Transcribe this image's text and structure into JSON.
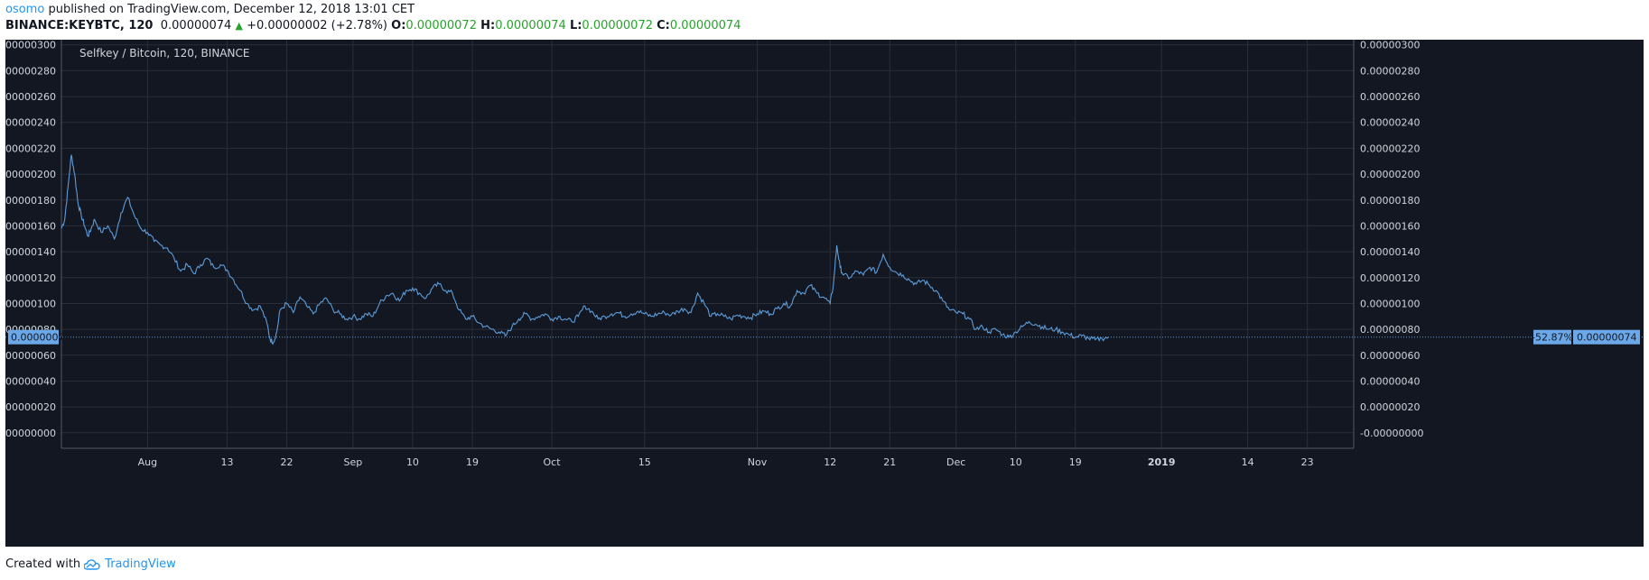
{
  "header": {
    "author": "osomo",
    "published": "published on TradingView.com, December 12, 2018 13:01 CET",
    "symbol": "BINANCE:KEYBTC, 120",
    "last": "0.00000074",
    "change": "+0.00000002 (+2.78%)",
    "o_label": "O:",
    "o_value": "0.00000072",
    "h_label": "H:",
    "h_value": "0.00000074",
    "l_label": "L:",
    "l_value": "0.00000072",
    "c_label": "C:",
    "c_value": "0.00000074"
  },
  "colors": {
    "background": "#131722",
    "grid": "#2a2e39",
    "line": "#5d9cd9",
    "label_bg": "#6ca8e8",
    "up": "#26a32a",
    "accent": "#2196f3"
  },
  "footer": {
    "created_with": "Created with",
    "brand": "TradingView",
    "logo_icon": "tradingview-cloud-icon"
  },
  "chart_data": {
    "type": "line",
    "title": "Selfkey / Bitcoin, 120, BINANCE",
    "ylim": [
      -1.2e-07,
      3.04e-06
    ],
    "y_ticks": [
      "0.00000300",
      "0.00000280",
      "0.00000260",
      "0.00000240",
      "0.00000220",
      "0.00000200",
      "0.00000180",
      "0.00000160",
      "0.00000140",
      "0.00000120",
      "0.00000100",
      "0.00000080",
      "0.00000060",
      "0.00000040",
      "0.00000020",
      "-0.00000000"
    ],
    "y_tick_values": [
      300,
      280,
      260,
      240,
      220,
      200,
      180,
      160,
      140,
      120,
      100,
      80,
      60,
      40,
      20,
      0
    ],
    "x_range": [
      "2018-07-19",
      "2019-01-30"
    ],
    "x_ticks": [
      {
        "label": "Aug",
        "date": "2018-08-01",
        "bold": false
      },
      {
        "label": "13",
        "date": "2018-08-13",
        "bold": false
      },
      {
        "label": "22",
        "date": "2018-08-22",
        "bold": false
      },
      {
        "label": "Sep",
        "date": "2018-09-01",
        "bold": false
      },
      {
        "label": "10",
        "date": "2018-09-10",
        "bold": false
      },
      {
        "label": "19",
        "date": "2018-09-19",
        "bold": false
      },
      {
        "label": "Oct",
        "date": "2018-10-01",
        "bold": false
      },
      {
        "label": "15",
        "date": "2018-10-15",
        "bold": false
      },
      {
        "label": "Nov",
        "date": "2018-11-01",
        "bold": false
      },
      {
        "label": "12",
        "date": "2018-11-12",
        "bold": false
      },
      {
        "label": "21",
        "date": "2018-11-21",
        "bold": false
      },
      {
        "label": "Dec",
        "date": "2018-12-01",
        "bold": false
      },
      {
        "label": "10",
        "date": "2018-12-10",
        "bold": false
      },
      {
        "label": "19",
        "date": "2018-12-19",
        "bold": false
      },
      {
        "label": "2019",
        "date": "2019-01-01",
        "bold": true
      },
      {
        "label": "14",
        "date": "2019-01-14",
        "bold": false
      },
      {
        "label": "23",
        "date": "2019-01-23",
        "bold": false
      }
    ],
    "y_unit_note": "",
    "series": [
      {
        "values_scale": "1e-8",
        "points": [
          [
            "2018-07-19",
            158
          ],
          [
            "2018-07-19T12",
            165
          ],
          [
            "2018-07-20",
            190
          ],
          [
            "2018-07-20T12",
            215
          ],
          [
            "2018-07-21",
            200
          ],
          [
            "2018-07-21T12",
            178
          ],
          [
            "2018-07-22",
            168
          ],
          [
            "2018-07-22T12",
            160
          ],
          [
            "2018-07-23",
            152
          ],
          [
            "2018-07-23T12",
            158
          ],
          [
            "2018-07-24",
            165
          ],
          [
            "2018-07-25",
            155
          ],
          [
            "2018-07-26",
            160
          ],
          [
            "2018-07-27",
            150
          ],
          [
            "2018-07-28",
            170
          ],
          [
            "2018-07-29",
            182
          ],
          [
            "2018-07-30",
            168
          ],
          [
            "2018-07-31",
            158
          ],
          [
            "2018-08-01",
            155
          ],
          [
            "2018-08-02",
            148
          ],
          [
            "2018-08-03",
            145
          ],
          [
            "2018-08-04",
            143
          ],
          [
            "2018-08-05",
            135
          ],
          [
            "2018-08-06",
            125
          ],
          [
            "2018-08-07",
            130
          ],
          [
            "2018-08-08",
            123
          ],
          [
            "2018-08-09",
            130
          ],
          [
            "2018-08-10",
            135
          ],
          [
            "2018-08-11",
            128
          ],
          [
            "2018-08-12",
            130
          ],
          [
            "2018-08-13",
            126
          ],
          [
            "2018-08-14",
            118
          ],
          [
            "2018-08-15",
            110
          ],
          [
            "2018-08-16",
            100
          ],
          [
            "2018-08-17",
            95
          ],
          [
            "2018-08-18",
            98
          ],
          [
            "2018-08-19",
            85
          ],
          [
            "2018-08-19T12",
            72
          ],
          [
            "2018-08-20",
            70
          ],
          [
            "2018-08-20T12",
            78
          ],
          [
            "2018-08-21",
            95
          ],
          [
            "2018-08-22",
            100
          ],
          [
            "2018-08-23",
            93
          ],
          [
            "2018-08-24",
            105
          ],
          [
            "2018-08-25",
            98
          ],
          [
            "2018-08-26",
            92
          ],
          [
            "2018-08-27",
            100
          ],
          [
            "2018-08-28",
            104
          ],
          [
            "2018-08-29",
            95
          ],
          [
            "2018-08-30",
            92
          ],
          [
            "2018-08-31",
            88
          ],
          [
            "2018-09-01",
            90
          ],
          [
            "2018-09-02",
            88
          ],
          [
            "2018-09-03",
            92
          ],
          [
            "2018-09-04",
            90
          ],
          [
            "2018-09-05",
            100
          ],
          [
            "2018-09-06",
            106
          ],
          [
            "2018-09-07",
            108
          ],
          [
            "2018-09-08",
            102
          ],
          [
            "2018-09-09",
            110
          ],
          [
            "2018-09-10",
            112
          ],
          [
            "2018-09-11",
            108
          ],
          [
            "2018-09-12",
            104
          ],
          [
            "2018-09-13",
            112
          ],
          [
            "2018-09-14",
            115
          ],
          [
            "2018-09-15",
            110
          ],
          [
            "2018-09-16",
            108
          ],
          [
            "2018-09-17",
            95
          ],
          [
            "2018-09-18",
            88
          ],
          [
            "2018-09-19",
            90
          ],
          [
            "2018-09-20",
            85
          ],
          [
            "2018-09-21",
            82
          ],
          [
            "2018-09-22",
            80
          ],
          [
            "2018-09-23",
            78
          ],
          [
            "2018-09-24",
            75
          ],
          [
            "2018-09-25",
            82
          ],
          [
            "2018-09-26",
            88
          ],
          [
            "2018-09-27",
            92
          ],
          [
            "2018-09-28",
            88
          ],
          [
            "2018-09-29",
            90
          ],
          [
            "2018-09-30",
            92
          ],
          [
            "2018-10-01",
            88
          ],
          [
            "2018-10-02",
            90
          ],
          [
            "2018-10-03",
            88
          ],
          [
            "2018-10-04",
            86
          ],
          [
            "2018-10-05",
            90
          ],
          [
            "2018-10-06",
            98
          ],
          [
            "2018-10-07",
            94
          ],
          [
            "2018-10-08",
            88
          ],
          [
            "2018-10-09",
            90
          ],
          [
            "2018-10-10",
            92
          ],
          [
            "2018-10-11",
            93
          ],
          [
            "2018-10-12",
            90
          ],
          [
            "2018-10-13",
            92
          ],
          [
            "2018-10-14",
            94
          ],
          [
            "2018-10-15",
            92
          ],
          [
            "2018-10-16",
            90
          ],
          [
            "2018-10-17",
            92
          ],
          [
            "2018-10-18",
            93
          ],
          [
            "2018-10-19",
            91
          ],
          [
            "2018-10-20",
            94
          ],
          [
            "2018-10-21",
            96
          ],
          [
            "2018-10-22",
            93
          ],
          [
            "2018-10-23",
            108
          ],
          [
            "2018-10-24",
            100
          ],
          [
            "2018-10-25",
            90
          ],
          [
            "2018-10-26",
            92
          ],
          [
            "2018-10-27",
            90
          ],
          [
            "2018-10-28",
            88
          ],
          [
            "2018-10-29",
            91
          ],
          [
            "2018-10-30",
            90
          ],
          [
            "2018-10-31",
            89
          ],
          [
            "2018-11-01",
            92
          ],
          [
            "2018-11-02",
            94
          ],
          [
            "2018-11-03",
            92
          ],
          [
            "2018-11-04",
            96
          ],
          [
            "2018-11-05",
            100
          ],
          [
            "2018-11-06",
            98
          ],
          [
            "2018-11-07",
            110
          ],
          [
            "2018-11-08",
            108
          ],
          [
            "2018-11-09",
            114
          ],
          [
            "2018-11-10",
            108
          ],
          [
            "2018-11-11",
            105
          ],
          [
            "2018-11-12",
            100
          ],
          [
            "2018-11-12T12",
            115
          ],
          [
            "2018-11-13",
            145
          ],
          [
            "2018-11-13T12",
            128
          ],
          [
            "2018-11-14",
            122
          ],
          [
            "2018-11-15",
            120
          ],
          [
            "2018-11-16",
            125
          ],
          [
            "2018-11-17",
            122
          ],
          [
            "2018-11-18",
            128
          ],
          [
            "2018-11-19",
            124
          ],
          [
            "2018-11-20",
            138
          ],
          [
            "2018-11-21",
            128
          ],
          [
            "2018-11-22",
            124
          ],
          [
            "2018-11-23",
            122
          ],
          [
            "2018-11-24",
            118
          ],
          [
            "2018-11-25",
            115
          ],
          [
            "2018-11-26",
            118
          ],
          [
            "2018-11-27",
            114
          ],
          [
            "2018-11-28",
            110
          ],
          [
            "2018-11-29",
            102
          ],
          [
            "2018-11-30",
            95
          ],
          [
            "2018-12-01",
            93
          ],
          [
            "2018-12-02",
            92
          ],
          [
            "2018-12-03",
            88
          ],
          [
            "2018-12-04",
            80
          ],
          [
            "2018-12-05",
            82
          ],
          [
            "2018-12-06",
            78
          ],
          [
            "2018-12-07",
            80
          ],
          [
            "2018-12-08",
            76
          ],
          [
            "2018-12-09",
            74
          ],
          [
            "2018-12-10",
            78
          ],
          [
            "2018-12-11",
            82
          ],
          [
            "2018-12-12",
            86
          ],
          [
            "2018-12-13",
            84
          ],
          [
            "2018-12-14",
            82
          ],
          [
            "2018-12-15",
            80
          ],
          [
            "2018-12-16",
            80
          ],
          [
            "2018-12-17",
            78
          ],
          [
            "2018-12-18",
            76
          ],
          [
            "2018-12-19",
            74
          ],
          [
            "2018-12-20",
            75
          ],
          [
            "2018-12-21",
            73
          ],
          [
            "2018-12-22",
            72
          ],
          [
            "2018-12-23",
            73
          ],
          [
            "2018-12-24",
            74
          ]
        ]
      }
    ],
    "last_value": "0.00000074",
    "last_value_number": 74,
    "last_change_pct": "-52.87%"
  }
}
